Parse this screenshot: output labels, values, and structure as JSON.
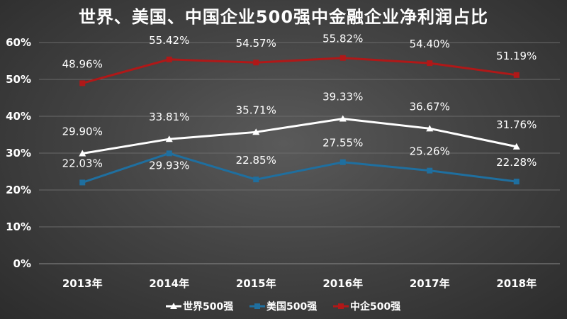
{
  "chart_data": {
    "type": "line",
    "title": "世界、美国、中国企业500强中金融企业净利润占比",
    "categories": [
      "2013年",
      "2014年",
      "2015年",
      "2016年",
      "2017年",
      "2018年"
    ],
    "ylim": [
      0,
      60
    ],
    "yticks": [
      "0%",
      "10%",
      "20%",
      "30%",
      "40%",
      "50%",
      "60%"
    ],
    "ytick_values": [
      0,
      10,
      20,
      30,
      40,
      50,
      60
    ],
    "grid": true,
    "legend_position": "bottom",
    "series": [
      {
        "name": "世界500强",
        "color": "#ffffff",
        "marker": "triangle",
        "values": [
          29.9,
          33.81,
          35.71,
          39.33,
          36.67,
          31.76
        ],
        "labels": [
          "29.90%",
          "33.81%",
          "35.71%",
          "39.33%",
          "36.67%",
          "31.76%"
        ]
      },
      {
        "name": "美国500强",
        "color": "#1f6f9f",
        "marker": "square",
        "values": [
          22.03,
          29.93,
          22.85,
          27.55,
          25.26,
          22.28
        ],
        "labels": [
          "22.03%",
          "29.93%",
          "22.85%",
          "27.55%",
          "25.26%",
          "22.28%"
        ]
      },
      {
        "name": "中企500强",
        "color": "#b01818",
        "marker": "square",
        "values": [
          48.96,
          55.42,
          54.57,
          55.82,
          54.4,
          51.19
        ],
        "labels": [
          "48.96%",
          "55.42%",
          "54.57%",
          "55.82%",
          "54.40%",
          "51.19%"
        ]
      }
    ]
  }
}
